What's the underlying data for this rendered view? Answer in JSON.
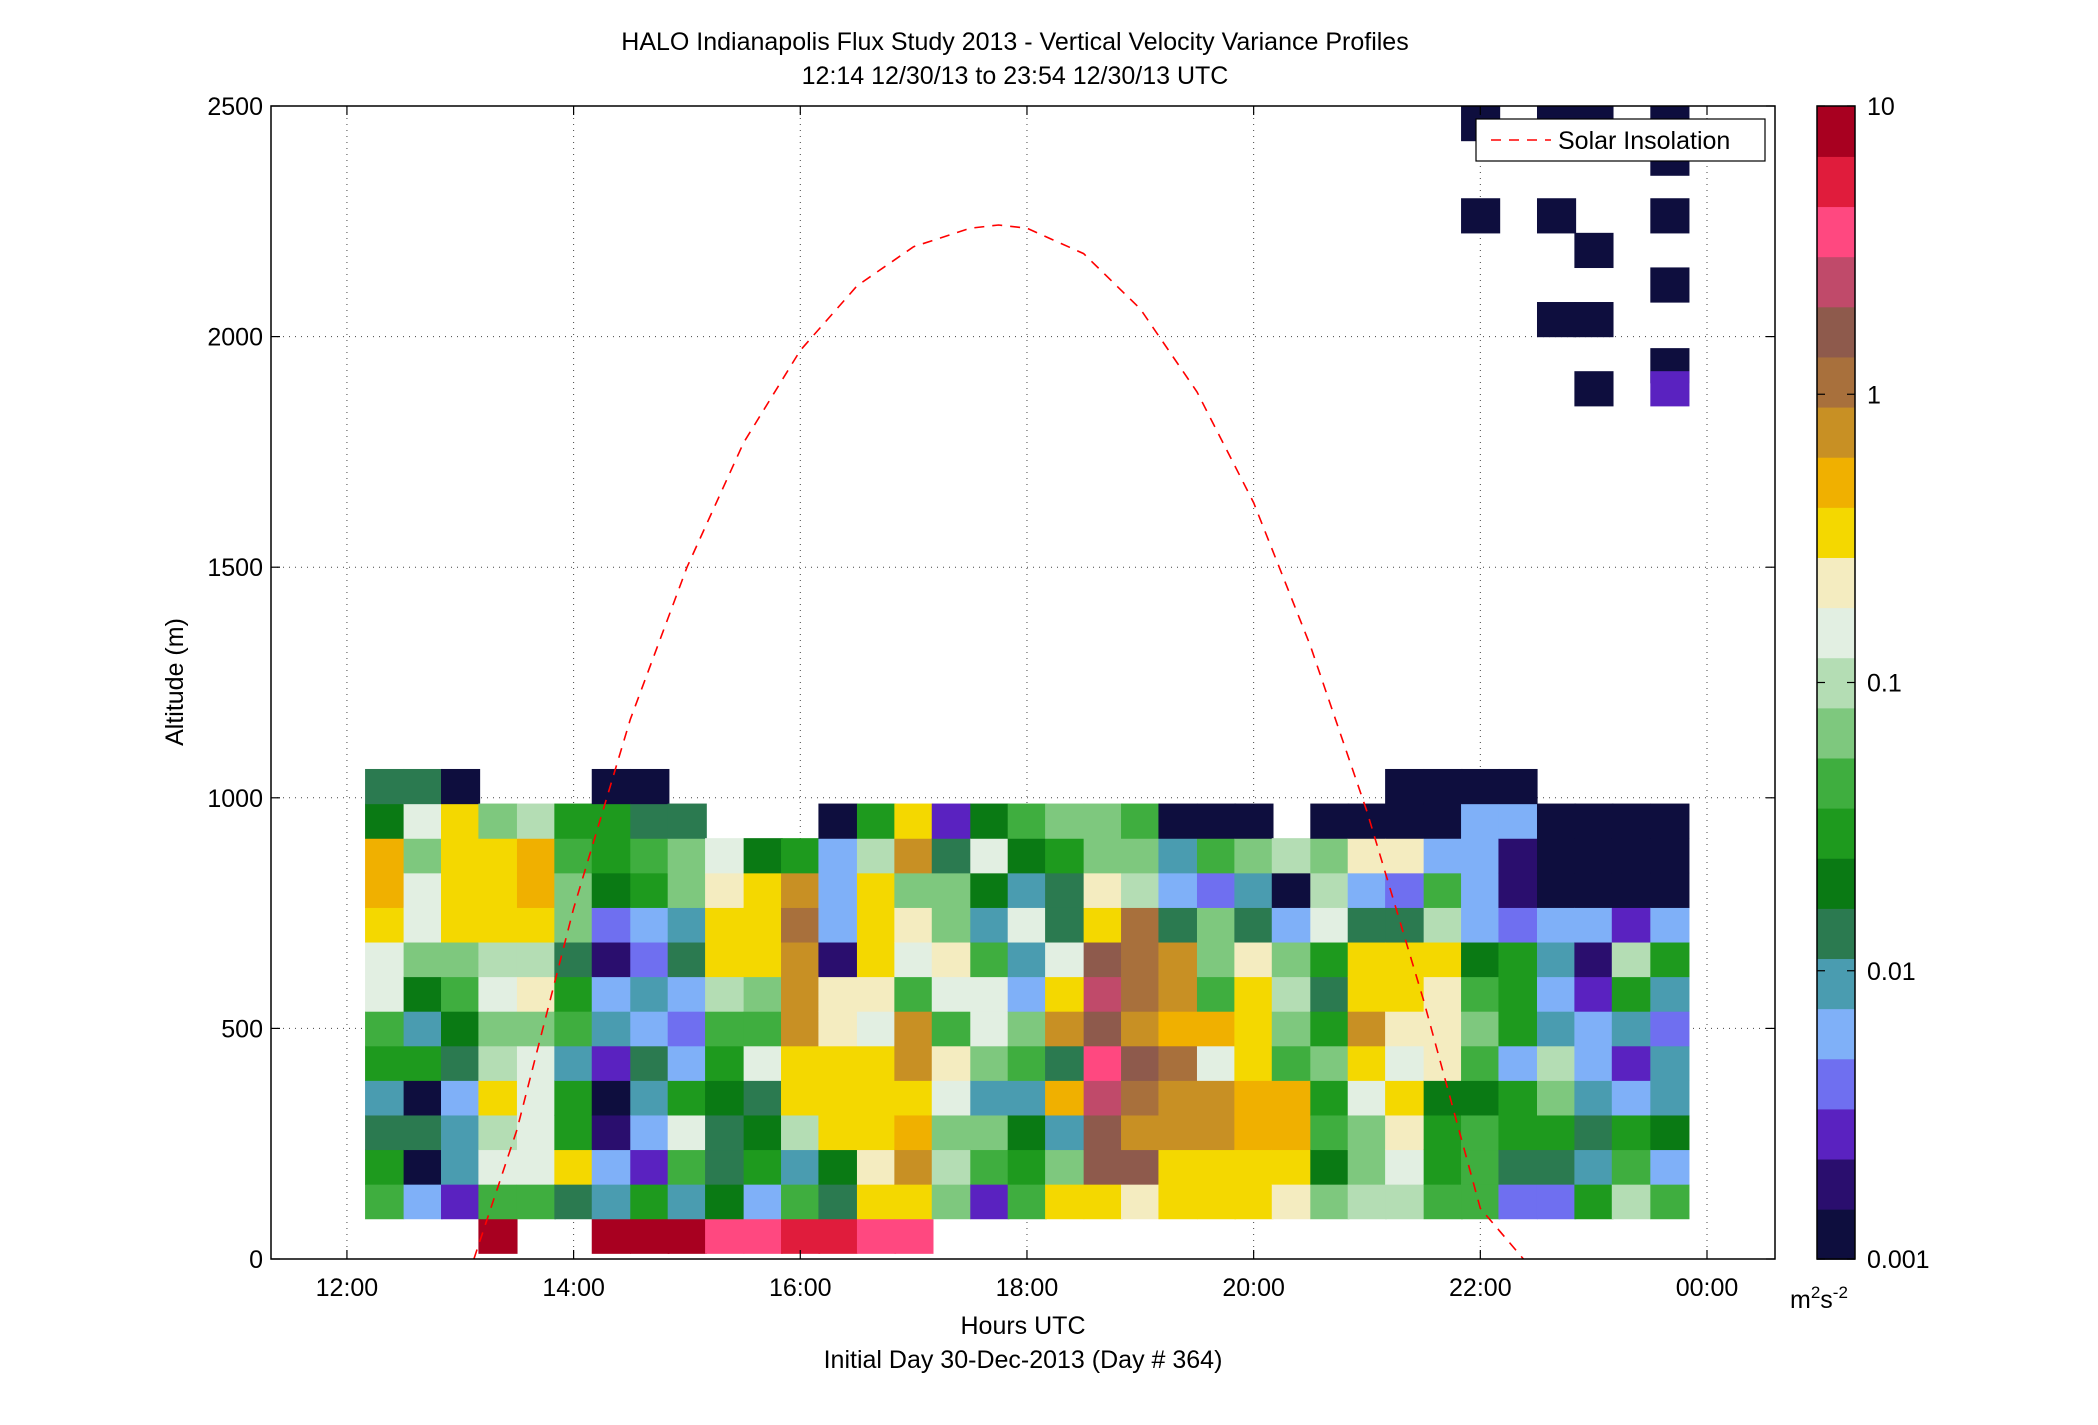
{
  "chart_data": {
    "type": "heatmap",
    "title": "HALO Indianapolis Flux Study 2013 - Vertical Velocity Variance Profiles",
    "subtitle": "12:14 12/30/13 to 23:54 12/30/13  UTC",
    "xlabel": "Hours UTC",
    "footer": "Initial Day 30-Dec-2013 (Day # 364)",
    "ylabel": "Altitude (m)",
    "x_hours_range": [
      11.33,
      24.6
    ],
    "x_ticks": [
      {
        "value": 12,
        "label": "12:00"
      },
      {
        "value": 14,
        "label": "14:00"
      },
      {
        "value": 16,
        "label": "16:00"
      },
      {
        "value": 18,
        "label": "18:00"
      },
      {
        "value": 20,
        "label": "20:00"
      },
      {
        "value": 22,
        "label": "22:00"
      },
      {
        "value": 24,
        "label": "00:00"
      }
    ],
    "ylim": [
      0,
      2500
    ],
    "y_ticks": [
      0,
      500,
      1000,
      1500,
      2000,
      2500
    ],
    "grid": true,
    "colorbar": {
      "scale": "log",
      "range": [
        0.001,
        10
      ],
      "ticks": [
        {
          "value": 0.001,
          "label": "0.001"
        },
        {
          "value": 0.01,
          "label": "0.01"
        },
        {
          "value": 0.1,
          "label": "0.1"
        },
        {
          "value": 1,
          "label": "1"
        },
        {
          "value": 10,
          "label": "10"
        }
      ],
      "units": "m²s⁻²",
      "units_base": "m",
      "units_sup1": "2",
      "units_mid": "s",
      "units_sup2": "-2",
      "colors": [
        "#0e0e3e",
        "#2a0e6e",
        "#5a22c0",
        "#6f6ff0",
        "#7fb0f8",
        "#4a9cb0",
        "#2b7a50",
        "#0a7a14",
        "#1e9a1e",
        "#3fae3f",
        "#7ec87e",
        "#b4ddb4",
        "#e2efe2",
        "#f4ecc0",
        "#f4d800",
        "#f0b000",
        "#c89024",
        "#a8703c",
        "#8e5a4c",
        "#c04a6a",
        "#ff4880",
        "#e01c3c",
        "#a80020"
      ]
    },
    "legend": {
      "position": "top-right",
      "entries": [
        {
          "name": "Solar Insolation",
          "style": "dashed",
          "color": "#ff0000"
        }
      ]
    },
    "solar_insolation_curve": {
      "x_hours": [
        13.12,
        13.5,
        14,
        14.5,
        15,
        15.5,
        16,
        16.5,
        17,
        17.5,
        17.75,
        18,
        18.5,
        19,
        19.5,
        20,
        20.5,
        21,
        21.5,
        22,
        22.38
      ],
      "y": [
        0,
        280,
        760,
        1170,
        1500,
        1770,
        1970,
        2110,
        2195,
        2235,
        2242,
        2235,
        2180,
        2060,
        1880,
        1640,
        1330,
        970,
        560,
        110,
        0
      ]
    },
    "time_bins_hours": [
      12.33,
      12.67,
      13.0,
      13.33,
      13.67,
      14.0,
      14.33,
      14.67,
      15.0,
      15.33,
      15.67,
      16.0,
      16.33,
      16.67,
      17.0,
      17.33,
      17.67,
      18.0,
      18.33,
      18.67,
      19.0,
      19.33,
      19.67,
      20.0,
      20.33,
      20.67,
      21.0,
      21.33,
      21.67,
      22.0,
      22.33,
      22.67,
      23.0,
      23.33,
      23.67
    ],
    "altitude_bins_m": [
      50,
      125,
      200,
      275,
      350,
      425,
      500,
      575,
      650,
      725,
      800,
      875,
      950,
      1025
    ],
    "variance_log10_by_time": [
      [
        null,
        -1.35,
        -1.6,
        -1.8,
        -2.0,
        -1.6,
        -1.4,
        -0.9,
        -0.8,
        -0.45,
        -0.35,
        -0.3,
        -1.7,
        -1.8
      ],
      [
        null,
        -2.2,
        -3.4,
        -1.9,
        -3.4,
        -1.6,
        -2.0,
        -1.7,
        -1.2,
        -0.9,
        -0.9,
        -1.1,
        -0.8,
        -1.9
      ],
      [
        null,
        -2.5,
        -2.0,
        -2.0,
        -2.3,
        -1.9,
        -1.7,
        -1.4,
        -1.2,
        -0.5,
        -0.5,
        -0.4,
        -0.4,
        -3.2
      ],
      [
        1.0,
        -1.4,
        -0.8,
        -1.05,
        -0.4,
        -1.05,
        -1.15,
        -0.9,
        -1.0,
        -0.45,
        -0.45,
        -0.4,
        -1.2,
        null
      ],
      [
        null,
        -1.3,
        -0.9,
        -0.85,
        -0.8,
        -0.9,
        -1.1,
        -0.6,
        -0.95,
        -0.4,
        -0.3,
        -0.3,
        -1.0,
        null
      ],
      [
        null,
        -1.9,
        -0.4,
        -1.6,
        -1.6,
        -2.0,
        -1.4,
        -1.6,
        -1.8,
        -1.2,
        -1.2,
        -1.4,
        -1.6,
        null
      ],
      [
        1.0,
        -2.0,
        -2.3,
        -2.7,
        -3.2,
        -2.6,
        -2.0,
        -2.3,
        -2.7,
        -2.4,
        -1.7,
        -1.5,
        -1.5,
        -3.2
      ],
      [
        1.0,
        -1.6,
        -2.5,
        -2.2,
        -2.0,
        -1.8,
        -2.2,
        -2.0,
        -2.4,
        -2.2,
        -1.5,
        -1.4,
        -1.8,
        -3.2
      ],
      [
        1.0,
        -2.0,
        -1.4,
        -0.9,
        -1.6,
        -2.2,
        -2.4,
        -2.2,
        -1.9,
        -2.0,
        -1.1,
        -1.1,
        -1.8,
        null
      ],
      [
        0.6,
        -1.7,
        -1.8,
        -1.8,
        -1.7,
        -1.6,
        -1.4,
        -1.0,
        -0.4,
        -0.4,
        -0.7,
        -0.9,
        null,
        null
      ],
      [
        0.6,
        -2.3,
        -1.6,
        -1.7,
        -1.8,
        -0.8,
        -1.3,
        -1.2,
        -0.4,
        -0.5,
        -0.4,
        -1.7,
        null,
        null
      ],
      [
        0.7,
        -1.3,
        -2.0,
        -1.0,
        -0.5,
        -0.4,
        -0.2,
        -0.2,
        -0.1,
        0.0,
        -0.1,
        -1.6,
        null,
        null
      ],
      [
        0.7,
        -1.8,
        -1.7,
        -0.4,
        -0.4,
        -0.4,
        -0.7,
        -0.7,
        -2.8,
        -2.3,
        -2.2,
        -2.2,
        -3.2,
        null
      ],
      [
        0.5,
        -0.4,
        -0.7,
        -0.4,
        -0.5,
        -0.5,
        -0.8,
        -0.6,
        -0.5,
        -0.4,
        -0.4,
        -1.0,
        -1.6,
        null
      ],
      [
        0.6,
        -0.5,
        -0.2,
        -0.3,
        -0.4,
        -0.2,
        -0.2,
        -1.4,
        -0.8,
        -0.7,
        -1.1,
        -0.2,
        -0.4,
        null
      ],
      [
        null,
        -1.1,
        -1.0,
        -1.1,
        -0.8,
        -0.6,
        -1.4,
        -0.8,
        -0.7,
        -1.1,
        -1.2,
        -1.9,
        -2.5,
        null
      ],
      [
        null,
        -2.5,
        -1.4,
        -1.1,
        -2.0,
        -1.1,
        -0.8,
        -0.9,
        -1.4,
        -2.0,
        -1.7,
        -0.8,
        -1.7,
        null
      ],
      [
        null,
        -1.4,
        -1.5,
        -1.7,
        -2.0,
        -1.3,
        -1.2,
        -2.2,
        -2.1,
        -0.8,
        -2.0,
        -1.7,
        -1.4,
        null
      ],
      [
        null,
        -0.4,
        -1.2,
        -2.0,
        -0.3,
        -1.8,
        -0.2,
        -0.4,
        -0.8,
        -1.8,
        -1.8,
        -1.5,
        -1.2,
        null
      ],
      [
        null,
        -0.5,
        0.3,
        0.3,
        0.4,
        0.6,
        0.3,
        0.4,
        0.3,
        -0.4,
        -0.7,
        -1.2,
        -1.2,
        null
      ],
      [
        null,
        -0.6,
        0.2,
        -0.2,
        0.1,
        0.2,
        -0.1,
        0.1,
        0.0,
        0.1,
        -1.0,
        -1.2,
        -1.4,
        null
      ],
      [
        null,
        -0.5,
        -0.4,
        -0.2,
        -0.1,
        0.1,
        -0.3,
        -0.1,
        -0.1,
        -1.8,
        -2.2,
        -2.1,
        -3.0,
        null
      ],
      [
        null,
        -0.4,
        -0.5,
        -0.2,
        -0.2,
        -0.9,
        -0.3,
        -1.4,
        -1.1,
        -1.2,
        -2.4,
        -1.4,
        -3.0,
        null
      ],
      [
        null,
        -0.5,
        -0.5,
        -0.3,
        -0.3,
        -0.5,
        -0.4,
        -0.5,
        -0.6,
        -1.8,
        -2.1,
        -1.2,
        -3.0,
        null
      ],
      [
        null,
        -0.6,
        -0.4,
        -0.3,
        -0.3,
        -1.3,
        -1.2,
        -1.0,
        -1.2,
        -2.3,
        -3.1,
        -1.0,
        null,
        null
      ],
      [
        null,
        -1.1,
        -1.7,
        -1.4,
        -1.6,
        -1.2,
        -1.6,
        -1.8,
        -1.6,
        -0.8,
        -1.0,
        -1.1,
        -3.2,
        null
      ],
      [
        null,
        -1.0,
        -1.1,
        -1.2,
        -0.9,
        -0.4,
        -0.2,
        -0.4,
        -0.4,
        -1.8,
        -2.2,
        -0.7,
        -3.2,
        null
      ],
      [
        null,
        -1.0,
        -0.9,
        -0.6,
        -0.5,
        -0.9,
        -0.7,
        -0.4,
        -0.5,
        -1.8,
        -2.4,
        -0.7,
        -3.2,
        -3.2
      ],
      [
        null,
        -1.3,
        -1.5,
        -1.6,
        -1.7,
        -0.6,
        -0.6,
        -0.7,
        -0.5,
        -1.0,
        -1.3,
        -2.3,
        -3.2,
        -3.2
      ],
      [
        null,
        -1.4,
        -1.4,
        -1.3,
        -1.7,
        -1.4,
        -1.2,
        -1.4,
        -1.7,
        -2.3,
        -2.3,
        -2.2,
        -2.2,
        -3.2
      ],
      [
        null,
        -2.4,
        -1.8,
        -1.5,
        -1.6,
        -2.3,
        -1.6,
        -1.5,
        -1.6,
        -2.4,
        -2.7,
        -2.7,
        -2.2,
        -3.2
      ],
      [
        null,
        -2.4,
        -1.8,
        -1.5,
        -1.2,
        -1.0,
        -2.0,
        -2.2,
        -2.0,
        -2.3,
        -3.2,
        -3.2,
        -3.2,
        null
      ],
      [
        null,
        -1.6,
        -2.0,
        -1.8,
        -2.1,
        -2.2,
        -2.3,
        -2.6,
        -2.7,
        -2.2,
        -3.2,
        -3.2,
        -3.2,
        null
      ],
      [
        null,
        -1.0,
        -1.3,
        -1.5,
        -2.3,
        -2.5,
        -2.0,
        -1.5,
        -1.0,
        -2.6,
        -3.2,
        -3.2,
        -3.2,
        null
      ],
      [
        null,
        -1.4,
        -2.2,
        -1.7,
        -2.1,
        -2.1,
        -2.4,
        -2.1,
        -1.6,
        -2.3,
        -3.2,
        -3.1,
        -3.2,
        null
      ]
    ],
    "upper_cells": [
      {
        "t": 22.0,
        "alt": 2462.5,
        "log10": -3.1
      },
      {
        "t": 22.0,
        "alt": 2262.5,
        "log10": -3.1
      },
      {
        "t": 22.67,
        "alt": 2462.5,
        "log10": -3.1
      },
      {
        "t": 22.67,
        "alt": 2262.5,
        "log10": -3.1
      },
      {
        "t": 22.67,
        "alt": 2037.5,
        "log10": -3.1
      },
      {
        "t": 23.0,
        "alt": 2462.5,
        "log10": -3.1
      },
      {
        "t": 23.0,
        "alt": 2187.5,
        "log10": -3.1
      },
      {
        "t": 23.0,
        "alt": 2037.5,
        "log10": -3.1
      },
      {
        "t": 23.0,
        "alt": 1887.5,
        "log10": -3.1
      },
      {
        "t": 23.67,
        "alt": 2462.5,
        "log10": -3.1
      },
      {
        "t": 23.67,
        "alt": 2387.5,
        "log10": -3.1
      },
      {
        "t": 23.67,
        "alt": 2262.5,
        "log10": -3.1
      },
      {
        "t": 23.67,
        "alt": 2112.5,
        "log10": -3.1
      },
      {
        "t": 23.67,
        "alt": 1937.5,
        "log10": -3.1
      },
      {
        "t": 23.67,
        "alt": 1887.5,
        "log10": -2.6
      }
    ]
  }
}
